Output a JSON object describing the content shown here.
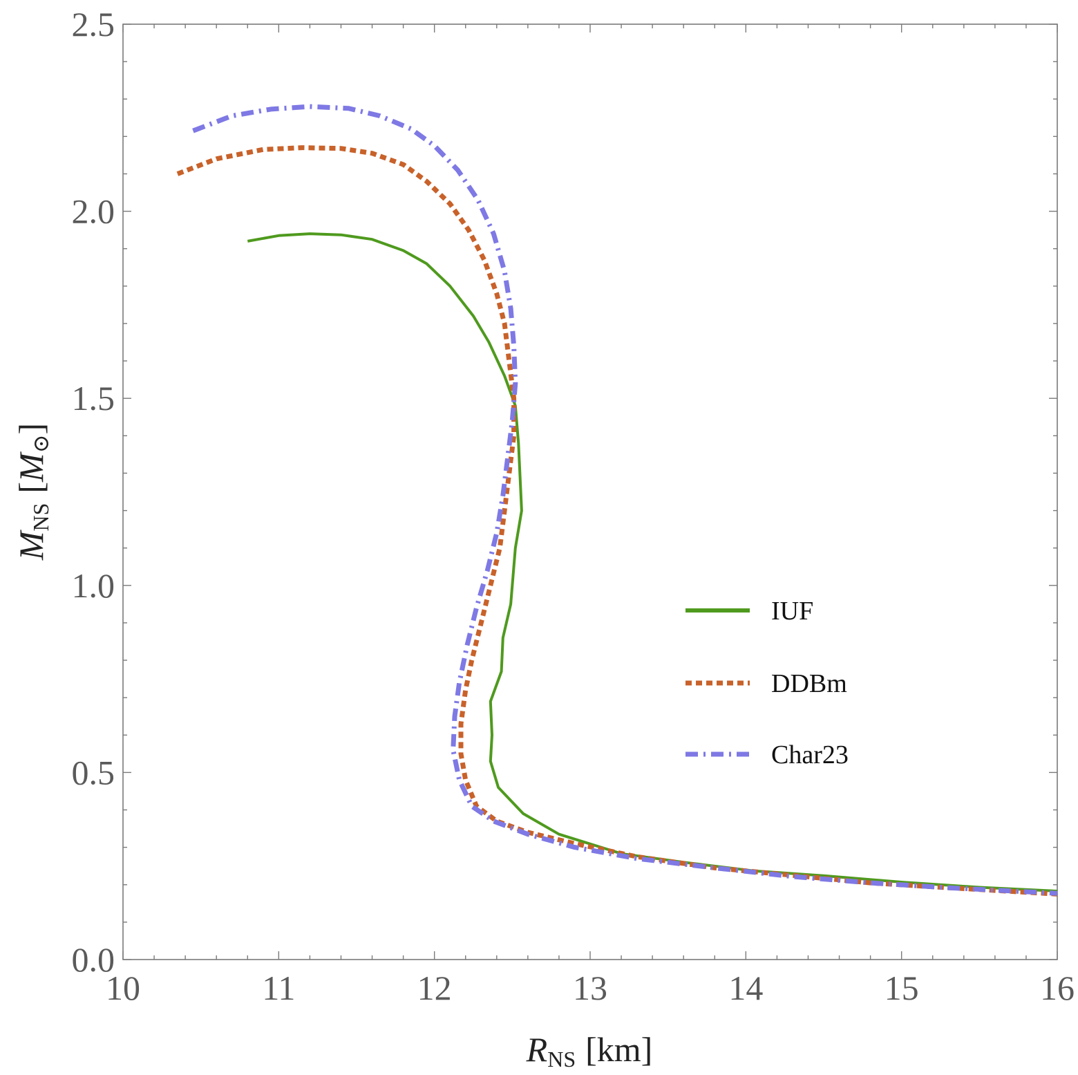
{
  "chart_data": {
    "type": "line",
    "title": "",
    "xlabel": {
      "symbol": "R",
      "subscript": "NS",
      "unit": "[km]"
    },
    "ylabel": {
      "symbol": "M",
      "subscript": "NS",
      "unit_open": "[",
      "unit_symbol": "M",
      "unit_sub": "⊙",
      "unit_close": "]"
    },
    "xlim": [
      10,
      16
    ],
    "ylim": [
      0,
      2.5
    ],
    "x_ticks": [
      10,
      11,
      12,
      13,
      14,
      15,
      16
    ],
    "x_tick_labels": [
      "10",
      "11",
      "12",
      "13",
      "14",
      "15",
      "16"
    ],
    "y_ticks": [
      0,
      0.5,
      1.0,
      1.5,
      2.0,
      2.5
    ],
    "y_tick_labels": [
      "0.0",
      "0.5",
      "1.0",
      "1.5",
      "2.0",
      "2.5"
    ],
    "grid": false,
    "legend_position": "right-middle",
    "series": [
      {
        "name": "IUF",
        "color": "#4f9a1e",
        "style": "solid",
        "points": [
          [
            10.8,
            1.92
          ],
          [
            11.0,
            1.935
          ],
          [
            11.2,
            1.94
          ],
          [
            11.4,
            1.937
          ],
          [
            11.6,
            1.925
          ],
          [
            11.8,
            1.895
          ],
          [
            11.95,
            1.86
          ],
          [
            12.1,
            1.8
          ],
          [
            12.25,
            1.72
          ],
          [
            12.35,
            1.65
          ],
          [
            12.45,
            1.56
          ],
          [
            12.52,
            1.48
          ],
          [
            12.54,
            1.38
          ],
          [
            12.56,
            1.2
          ],
          [
            12.52,
            1.1
          ],
          [
            12.49,
            0.95
          ],
          [
            12.44,
            0.86
          ],
          [
            12.43,
            0.77
          ],
          [
            12.36,
            0.69
          ],
          [
            12.37,
            0.6
          ],
          [
            12.36,
            0.53
          ],
          [
            12.41,
            0.46
          ],
          [
            12.57,
            0.39
          ],
          [
            12.8,
            0.335
          ],
          [
            13.2,
            0.283
          ],
          [
            13.6,
            0.26
          ],
          [
            14.05,
            0.237
          ],
          [
            14.5,
            0.224
          ],
          [
            15.0,
            0.207
          ],
          [
            15.5,
            0.193
          ],
          [
            16.0,
            0.183
          ]
        ]
      },
      {
        "name": "DDBm",
        "color": "#c8622a",
        "style": "dotted",
        "points": [
          [
            10.35,
            2.1
          ],
          [
            10.6,
            2.14
          ],
          [
            10.9,
            2.165
          ],
          [
            11.15,
            2.17
          ],
          [
            11.4,
            2.168
          ],
          [
            11.6,
            2.155
          ],
          [
            11.8,
            2.125
          ],
          [
            11.95,
            2.08
          ],
          [
            12.1,
            2.02
          ],
          [
            12.22,
            1.95
          ],
          [
            12.32,
            1.87
          ],
          [
            12.4,
            1.78
          ],
          [
            12.45,
            1.7
          ],
          [
            12.48,
            1.6
          ],
          [
            12.51,
            1.5
          ],
          [
            12.51,
            1.4
          ],
          [
            12.48,
            1.3
          ],
          [
            12.45,
            1.2
          ],
          [
            12.42,
            1.1
          ],
          [
            12.36,
            1.0
          ],
          [
            12.3,
            0.9
          ],
          [
            12.24,
            0.8
          ],
          [
            12.2,
            0.72
          ],
          [
            12.17,
            0.63
          ],
          [
            12.17,
            0.55
          ],
          [
            12.2,
            0.48
          ],
          [
            12.27,
            0.41
          ],
          [
            12.4,
            0.37
          ],
          [
            12.6,
            0.34
          ],
          [
            12.9,
            0.31
          ],
          [
            13.3,
            0.275
          ],
          [
            13.8,
            0.245
          ],
          [
            14.3,
            0.225
          ],
          [
            14.8,
            0.205
          ],
          [
            15.3,
            0.192
          ],
          [
            16.0,
            0.175
          ]
        ]
      },
      {
        "name": "Char23",
        "color": "#7e79e4",
        "style": "dashdot",
        "points": [
          [
            10.45,
            2.215
          ],
          [
            10.7,
            2.255
          ],
          [
            10.95,
            2.273
          ],
          [
            11.2,
            2.28
          ],
          [
            11.45,
            2.275
          ],
          [
            11.65,
            2.255
          ],
          [
            11.85,
            2.22
          ],
          [
            12.0,
            2.175
          ],
          [
            12.15,
            2.11
          ],
          [
            12.28,
            2.03
          ],
          [
            12.38,
            1.94
          ],
          [
            12.45,
            1.84
          ],
          [
            12.49,
            1.74
          ],
          [
            12.51,
            1.64
          ],
          [
            12.52,
            1.54
          ],
          [
            12.5,
            1.44
          ],
          [
            12.47,
            1.34
          ],
          [
            12.44,
            1.24
          ],
          [
            12.4,
            1.14
          ],
          [
            12.34,
            1.04
          ],
          [
            12.27,
            0.94
          ],
          [
            12.21,
            0.84
          ],
          [
            12.16,
            0.74
          ],
          [
            12.13,
            0.65
          ],
          [
            12.12,
            0.56
          ],
          [
            12.16,
            0.48
          ],
          [
            12.24,
            0.41
          ],
          [
            12.38,
            0.37
          ],
          [
            12.6,
            0.335
          ],
          [
            12.9,
            0.3
          ],
          [
            13.3,
            0.27
          ],
          [
            13.8,
            0.245
          ],
          [
            14.3,
            0.222
          ],
          [
            14.8,
            0.205
          ],
          [
            15.3,
            0.192
          ],
          [
            16.0,
            0.177
          ]
        ]
      }
    ]
  }
}
